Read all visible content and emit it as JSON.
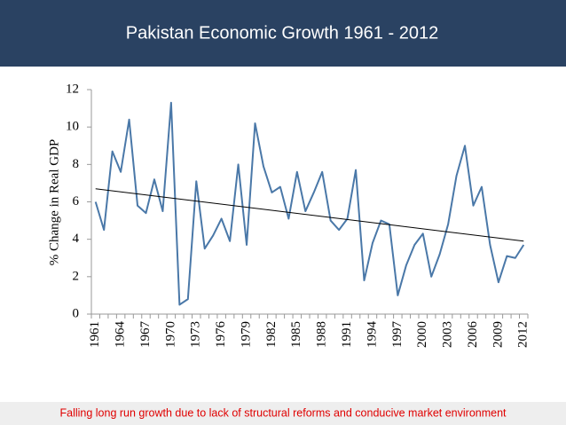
{
  "chart_data": {
    "type": "line",
    "title": "Pakistan Economic Growth 1961 - 2012",
    "y_label": "% Change in Real GDP",
    "note": "Falling long run growth due to lack of structural reforms and conducive market environment",
    "categories": [
      "1961",
      null,
      null,
      "1964",
      null,
      null,
      "1967",
      null,
      null,
      "1970",
      null,
      null,
      "1973",
      null,
      null,
      "1976",
      null,
      null,
      "1979",
      null,
      null,
      "1982",
      null,
      null,
      "1985",
      null,
      null,
      "1988",
      null,
      null,
      "1991",
      null,
      null,
      "1994",
      null,
      null,
      "1997",
      null,
      null,
      "2000",
      null,
      null,
      "2003",
      null,
      null,
      "2006",
      null,
      null,
      "2009",
      null,
      null,
      "2012"
    ],
    "values": [
      6.0,
      4.5,
      8.7,
      7.6,
      10.4,
      5.8,
      5.4,
      7.2,
      5.5,
      11.3,
      0.5,
      0.8,
      7.1,
      3.5,
      4.2,
      5.1,
      3.9,
      8.0,
      3.7,
      10.2,
      7.9,
      6.5,
      6.8,
      5.1,
      7.6,
      5.5,
      6.5,
      7.6,
      5.0,
      4.5,
      5.1,
      7.7,
      1.8,
      3.8,
      5.0,
      4.8,
      1.0,
      2.6,
      3.7,
      4.3,
      2.0,
      3.2,
      4.8,
      7.4,
      9.0,
      5.8,
      6.8,
      3.7,
      1.7,
      3.1,
      3.0,
      3.7
    ],
    "color": "#4a78a8",
    "trendline": [
      6.7,
      3.9
    ],
    "trendline_color": "#000000",
    "ylim": [
      0,
      12
    ],
    "yticks": [
      0,
      2,
      4,
      6,
      8,
      10,
      12
    ],
    "grid": false
  }
}
